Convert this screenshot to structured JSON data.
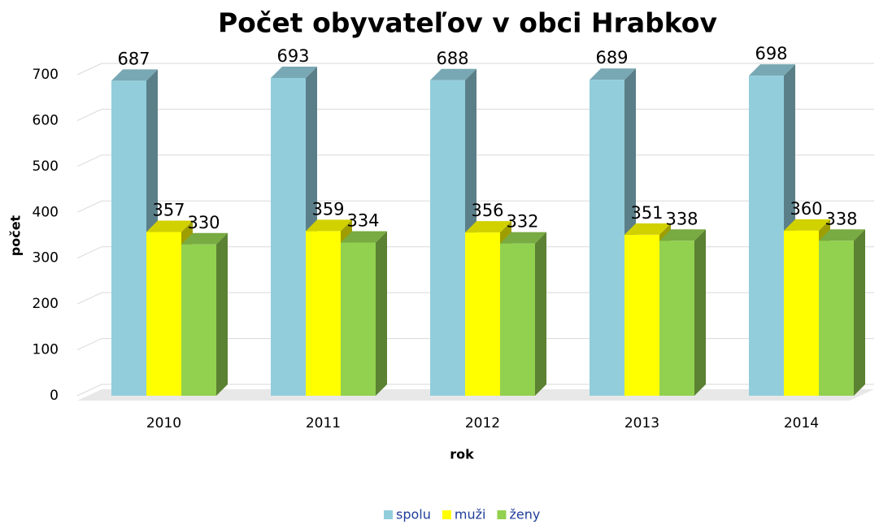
{
  "chart_data": {
    "type": "bar3d",
    "title": "Počet obyvateľov v obci Hrabkov",
    "y_label": "počet",
    "x_label": "rok",
    "categories": [
      "2010",
      "2011",
      "2012",
      "2013",
      "2014"
    ],
    "series": [
      {
        "name": "spolu",
        "color": "#92cddc",
        "values": [
          687,
          693,
          688,
          689,
          698
        ]
      },
      {
        "name": "muži",
        "color": "#ffff00",
        "values": [
          357,
          359,
          356,
          351,
          360
        ]
      },
      {
        "name": "ženy",
        "color": "#92d050",
        "values": [
          330,
          334,
          332,
          338,
          338
        ]
      }
    ],
    "ylim": [
      0,
      700
    ],
    "yticks": [
      0,
      100,
      200,
      300,
      400,
      500,
      600,
      700
    ],
    "grid": true,
    "legend": "bottom"
  }
}
